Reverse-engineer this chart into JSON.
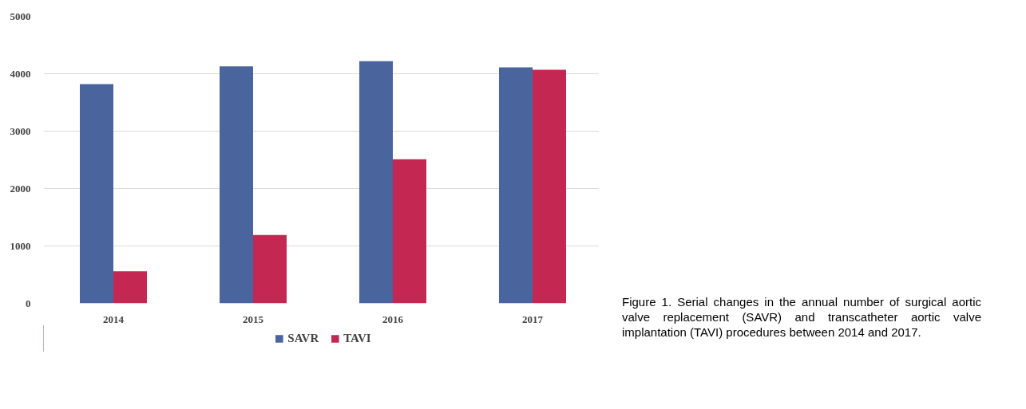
{
  "chart_data": {
    "type": "bar",
    "categories": [
      "2014",
      "2015",
      "2016",
      "2017"
    ],
    "series": [
      {
        "name": "SAVR",
        "color": "#4a649d",
        "values": [
          3820,
          4130,
          4220,
          4110
        ]
      },
      {
        "name": "TAVI",
        "color": "#c42852",
        "values": [
          560,
          1190,
          2510,
          4070
        ]
      }
    ],
    "ylim": [
      0,
      5000
    ],
    "yticks": [
      0,
      1000,
      2000,
      3000,
      4000,
      5000
    ],
    "grid": "y",
    "legend": "bottom",
    "annotations": [
      "Figure 1.    Serial changes in the annual number of surgical aortic valve replacement (SAVR) and transcatheter aortic valve implantation (TAVI) procedures between 2014 and 2017."
    ]
  }
}
